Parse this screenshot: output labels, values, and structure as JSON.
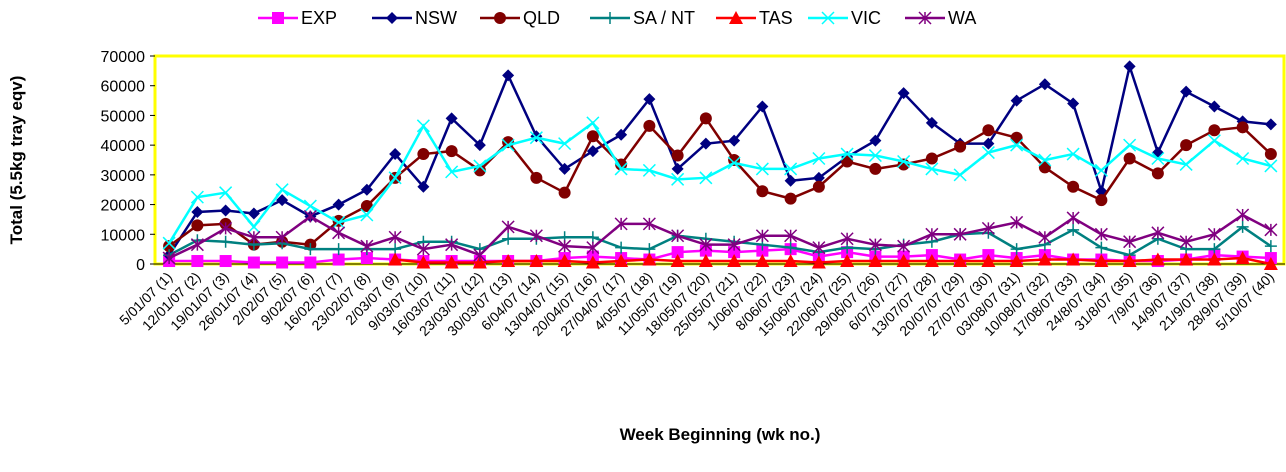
{
  "chart_data": {
    "type": "line",
    "y_label": "Total (5.5kg tray eqv)",
    "x_label": "Week Beginning (wk no.)",
    "categories": [
      "5/01/07 (1)",
      "12/01/07 (2)",
      "19/01/07 (3)",
      "26/01/07 (4)",
      "2/02/07 (5)",
      "9/02/07 (6)",
      "16/02/07 (7)",
      "23/02/07 (8)",
      "2/03/07 (9)",
      "9/03/07 (10)",
      "16/03/07 (11)",
      "23/03/07 (12)",
      "30/03/07 (13)",
      "6/04/07 (14)",
      "13/04/07 (15)",
      "20/04/07 (16)",
      "27/04/07 (17)",
      "4/05/07 (18)",
      "11/05/07 (19)",
      "18/05/07 (20)",
      "25/05/07 (21)",
      "1/06/07 (22)",
      "8/06/07 (23)",
      "15/06/07 (24)",
      "22/06/07 (25)",
      "29/06/07 (26)",
      "6/07/07 (27)",
      "13/07/07 (28)",
      "20/07/07 (29)",
      "27/07/07 (30)",
      "03/08/07 (31)",
      "10/08/07 (32)",
      "17/08/07 (33)",
      "24/8/07 (34)",
      "31/8/07 (35)",
      "7/9/07 (36)",
      "14/9/07 (37)",
      "21/9/07 (38)",
      "28/9/07 (39)",
      "5/10/07 (40)"
    ],
    "series": [
      {
        "name": "EXP",
        "color": "#ff00ff",
        "marker": "square",
        "values": [
          1000,
          1000,
          1000,
          500,
          500,
          500,
          1500,
          2000,
          1500,
          1000,
          1000,
          1000,
          1000,
          1000,
          2000,
          2500,
          2000,
          1500,
          4000,
          4500,
          4000,
          4500,
          5000,
          2500,
          4000,
          2500,
          2500,
          3000,
          1500,
          3000,
          2000,
          3000,
          1500,
          1500,
          1000,
          1000,
          1500,
          3000,
          2500,
          2000
        ]
      },
      {
        "name": "NSW",
        "color": "#000080",
        "marker": "diamond",
        "values": [
          3000,
          17500,
          18000,
          17000,
          21500,
          16000,
          20000,
          25000,
          37000,
          26000,
          49000,
          40000,
          63500,
          43000,
          32000,
          38000,
          43500,
          55500,
          32000,
          40500,
          41500,
          53000,
          28000,
          29000,
          36000,
          41500,
          57500,
          47500,
          40500,
          40500,
          55000,
          60500,
          54000,
          24500,
          66500,
          37500,
          58000,
          53000,
          48000,
          47000
        ]
      },
      {
        "name": "QLD",
        "color": "#800000",
        "marker": "circle",
        "values": [
          6000,
          13000,
          13500,
          6500,
          7500,
          6500,
          14500,
          19500,
          29000,
          37000,
          38000,
          31500,
          41000,
          29000,
          24000,
          43000,
          33500,
          46500,
          36500,
          49000,
          35000,
          24500,
          22000,
          26000,
          34500,
          32000,
          33500,
          35500,
          39500,
          45000,
          42500,
          32500,
          26000,
          21500,
          35500,
          30500,
          40000,
          45000,
          46000,
          37000
        ]
      },
      {
        "name": "SA / NT",
        "color": "#008080",
        "marker": "plus",
        "values": [
          3000,
          8000,
          7500,
          6500,
          7000,
          5000,
          5000,
          5000,
          5000,
          7500,
          7500,
          5000,
          8500,
          8500,
          9000,
          9000,
          5500,
          5000,
          9500,
          8500,
          7500,
          6500,
          5500,
          4000,
          5500,
          5000,
          6500,
          7500,
          10000,
          10500,
          5000,
          6500,
          11500,
          5500,
          3000,
          8500,
          5000,
          5000,
          12500,
          6000
        ]
      },
      {
        "name": "TAS",
        "color": "#ff0000",
        "marker": "triangle",
        "values": [
          null,
          null,
          null,
          null,
          null,
          null,
          null,
          null,
          1500,
          500,
          500,
          500,
          1000,
          1000,
          1000,
          500,
          1000,
          1500,
          1000,
          1000,
          1000,
          1000,
          1000,
          500,
          1000,
          1000,
          1000,
          1000,
          1000,
          1000,
          1000,
          1500,
          1500,
          1000,
          1000,
          1500,
          1500,
          1500,
          2000,
          0
        ]
      },
      {
        "name": "VIC",
        "color": "#00ffff",
        "marker": "x",
        "values": [
          7000,
          22500,
          24000,
          12500,
          25000,
          19500,
          14000,
          16500,
          29000,
          46500,
          31000,
          33000,
          40000,
          42500,
          40500,
          47500,
          32000,
          31500,
          28500,
          29000,
          34000,
          32000,
          32000,
          35500,
          37000,
          36500,
          34500,
          32000,
          30000,
          37500,
          40000,
          35000,
          37000,
          31500,
          40000,
          35500,
          33500,
          41500,
          35500,
          33000
        ]
      },
      {
        "name": "WA",
        "color": "#800080",
        "marker": "star",
        "values": [
          2000,
          6500,
          12000,
          9000,
          9000,
          16000,
          10500,
          6000,
          9000,
          5000,
          6500,
          3000,
          12500,
          9500,
          6000,
          5500,
          13500,
          13500,
          9500,
          6500,
          6500,
          9500,
          9500,
          5500,
          8500,
          6500,
          6000,
          10000,
          10000,
          12000,
          14000,
          9000,
          15500,
          10000,
          7500,
          10500,
          7500,
          10000,
          16500,
          11500
        ]
      }
    ],
    "ylim": [
      0,
      70000
    ],
    "yticks": [
      0,
      10000,
      20000,
      30000,
      40000,
      50000,
      60000,
      70000
    ],
    "legend": "top",
    "plot_border_color": "#ffff00"
  }
}
